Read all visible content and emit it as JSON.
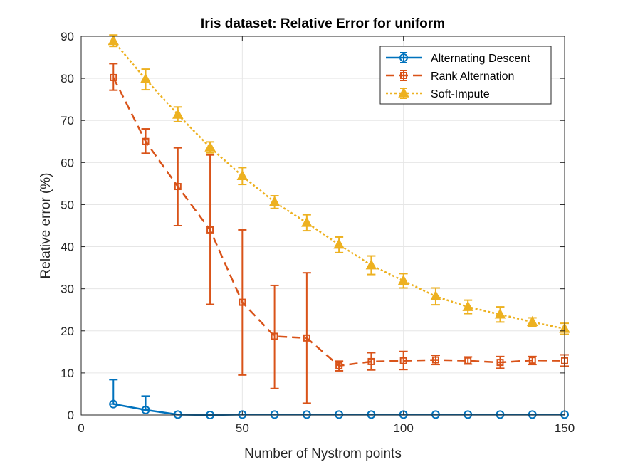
{
  "chart_data": {
    "type": "line",
    "title": "Iris dataset: Relative Error for uniform",
    "xlabel": "Number of Nystrom points",
    "ylabel": "Relative error (%)",
    "xlim": [
      0,
      150
    ],
    "ylim": [
      0,
      90
    ],
    "xticks": [
      0,
      50,
      100,
      150
    ],
    "yticks": [
      0,
      10,
      20,
      30,
      40,
      50,
      60,
      70,
      80,
      90
    ],
    "grid": true,
    "legend_position": "top-right",
    "x": [
      10,
      20,
      30,
      40,
      50,
      60,
      70,
      80,
      90,
      100,
      110,
      120,
      130,
      140,
      150
    ],
    "series": [
      {
        "name": "Alternating Descent",
        "color": "#0072bd",
        "line_style": "solid",
        "marker": "circle",
        "values": [
          2.6,
          1.2,
          0.1,
          0.0,
          0.1,
          0.1,
          0.1,
          0.1,
          0.1,
          0.1,
          0.1,
          0.1,
          0.1,
          0.1,
          0.1
        ],
        "err_low": [
          2.6,
          1.2,
          0.1,
          0.0,
          0.1,
          0.1,
          0.1,
          0.1,
          0.1,
          0.1,
          0.1,
          0.1,
          0.1,
          0.1,
          0.1
        ],
        "err_high": [
          8.4,
          4.5,
          0.1,
          0.0,
          0.1,
          0.1,
          0.1,
          0.1,
          0.1,
          0.1,
          0.1,
          0.1,
          0.1,
          0.1,
          0.1
        ]
      },
      {
        "name": "Rank Alternation",
        "color": "#d95319",
        "line_style": "dashed",
        "marker": "square",
        "values": [
          80.2,
          65.0,
          54.3,
          44.0,
          26.8,
          18.7,
          18.3,
          11.7,
          12.7,
          12.9,
          13.1,
          12.9,
          12.5,
          13.0,
          12.9
        ],
        "err_low": [
          77.2,
          62.2,
          45.0,
          26.3,
          9.5,
          6.3,
          2.8,
          10.5,
          10.7,
          10.8,
          12.0,
          12.1,
          11.1,
          12.0,
          11.6
        ],
        "err_high": [
          83.5,
          68.0,
          63.5,
          61.8,
          44.0,
          30.8,
          33.8,
          12.8,
          14.8,
          15.1,
          14.2,
          13.8,
          13.9,
          13.9,
          14.3
        ]
      },
      {
        "name": "Soft-Impute",
        "color": "#edb120",
        "line_style": "dotted",
        "marker": "triangle",
        "values": [
          88.9,
          79.8,
          71.4,
          63.6,
          56.8,
          50.6,
          45.7,
          40.5,
          35.6,
          31.9,
          28.2,
          25.7,
          23.9,
          22.1,
          20.5
        ],
        "err_low": [
          87.6,
          77.3,
          69.7,
          62.3,
          54.8,
          49.1,
          43.8,
          38.6,
          33.4,
          30.2,
          26.2,
          24.1,
          22.1,
          21.1,
          19.2
        ],
        "err_high": [
          90.3,
          82.2,
          73.2,
          64.9,
          58.8,
          52.1,
          47.6,
          42.3,
          37.8,
          33.6,
          30.2,
          27.3,
          25.7,
          23.1,
          21.8
        ]
      }
    ]
  }
}
